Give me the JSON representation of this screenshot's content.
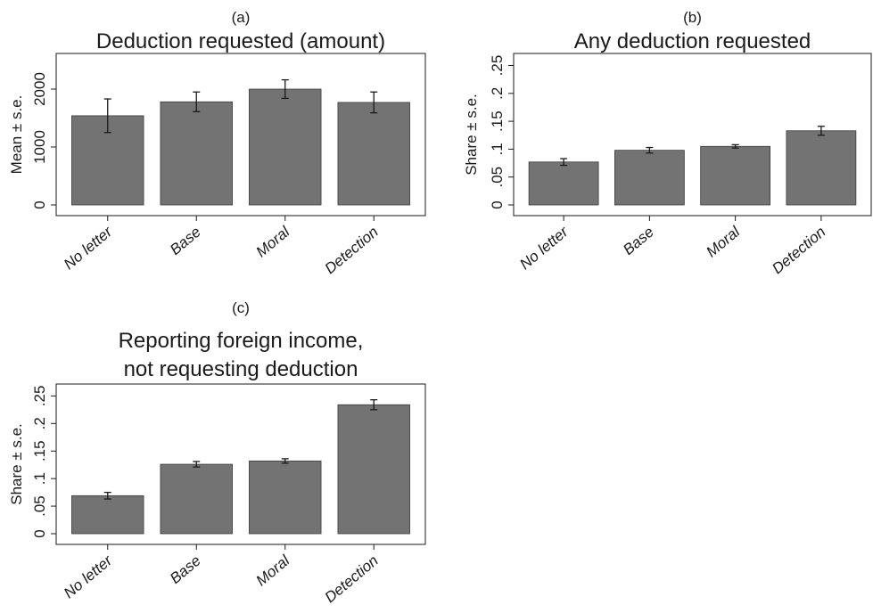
{
  "colors": {
    "bar_fill": "#737373",
    "bar_stroke": "#3a3a3a",
    "axis": "#1a1a1a",
    "text": "#1a1a1a",
    "error_bar": "#1a1a1a",
    "background": "#ffffff"
  },
  "chart_data": [
    {
      "type": "bar",
      "panel_label": "(a)",
      "title": "Deduction requested (amount)",
      "categories": [
        "No letter",
        "Base",
        "Moral",
        "Detection"
      ],
      "values": [
        1540,
        1780,
        2000,
        1770
      ],
      "errors": [
        290,
        170,
        160,
        180
      ],
      "ylabel": "Mean ± s.e.",
      "ylim": [
        0,
        2600
      ],
      "yticks": [
        0,
        1000,
        2000
      ],
      "ytick_labels": [
        "0",
        "1000",
        "2000"
      ],
      "grid": false,
      "legend": "none"
    },
    {
      "type": "bar",
      "panel_label": "(b)",
      "title": "Any deduction requested",
      "categories": [
        "No letter",
        "Base",
        "Moral",
        "Detection"
      ],
      "values": [
        0.077,
        0.098,
        0.105,
        0.133
      ],
      "errors": [
        0.006,
        0.005,
        0.003,
        0.008
      ],
      "ylabel": "Share ± s.e.",
      "ylim": [
        0,
        0.27
      ],
      "yticks": [
        0,
        0.05,
        0.1,
        0.15,
        0.2,
        0.25
      ],
      "ytick_labels": [
        "0",
        ".05",
        ".1",
        ".15",
        ".2",
        ".25"
      ],
      "grid": false,
      "legend": "none"
    },
    {
      "type": "bar",
      "panel_label": "(c)",
      "title": [
        "Reporting foreign income,",
        "not requesting deduction"
      ],
      "categories": [
        "No letter",
        "Base",
        "Moral",
        "Detection"
      ],
      "values": [
        0.069,
        0.126,
        0.132,
        0.234
      ],
      "errors": [
        0.006,
        0.005,
        0.004,
        0.009
      ],
      "ylabel": "Share ± s.e.",
      "ylim": [
        0,
        0.27
      ],
      "yticks": [
        0,
        0.05,
        0.1,
        0.15,
        0.2,
        0.25
      ],
      "ytick_labels": [
        "0",
        ".05",
        ".1",
        ".15",
        ".2",
        ".25"
      ],
      "grid": false,
      "legend": "none"
    }
  ]
}
